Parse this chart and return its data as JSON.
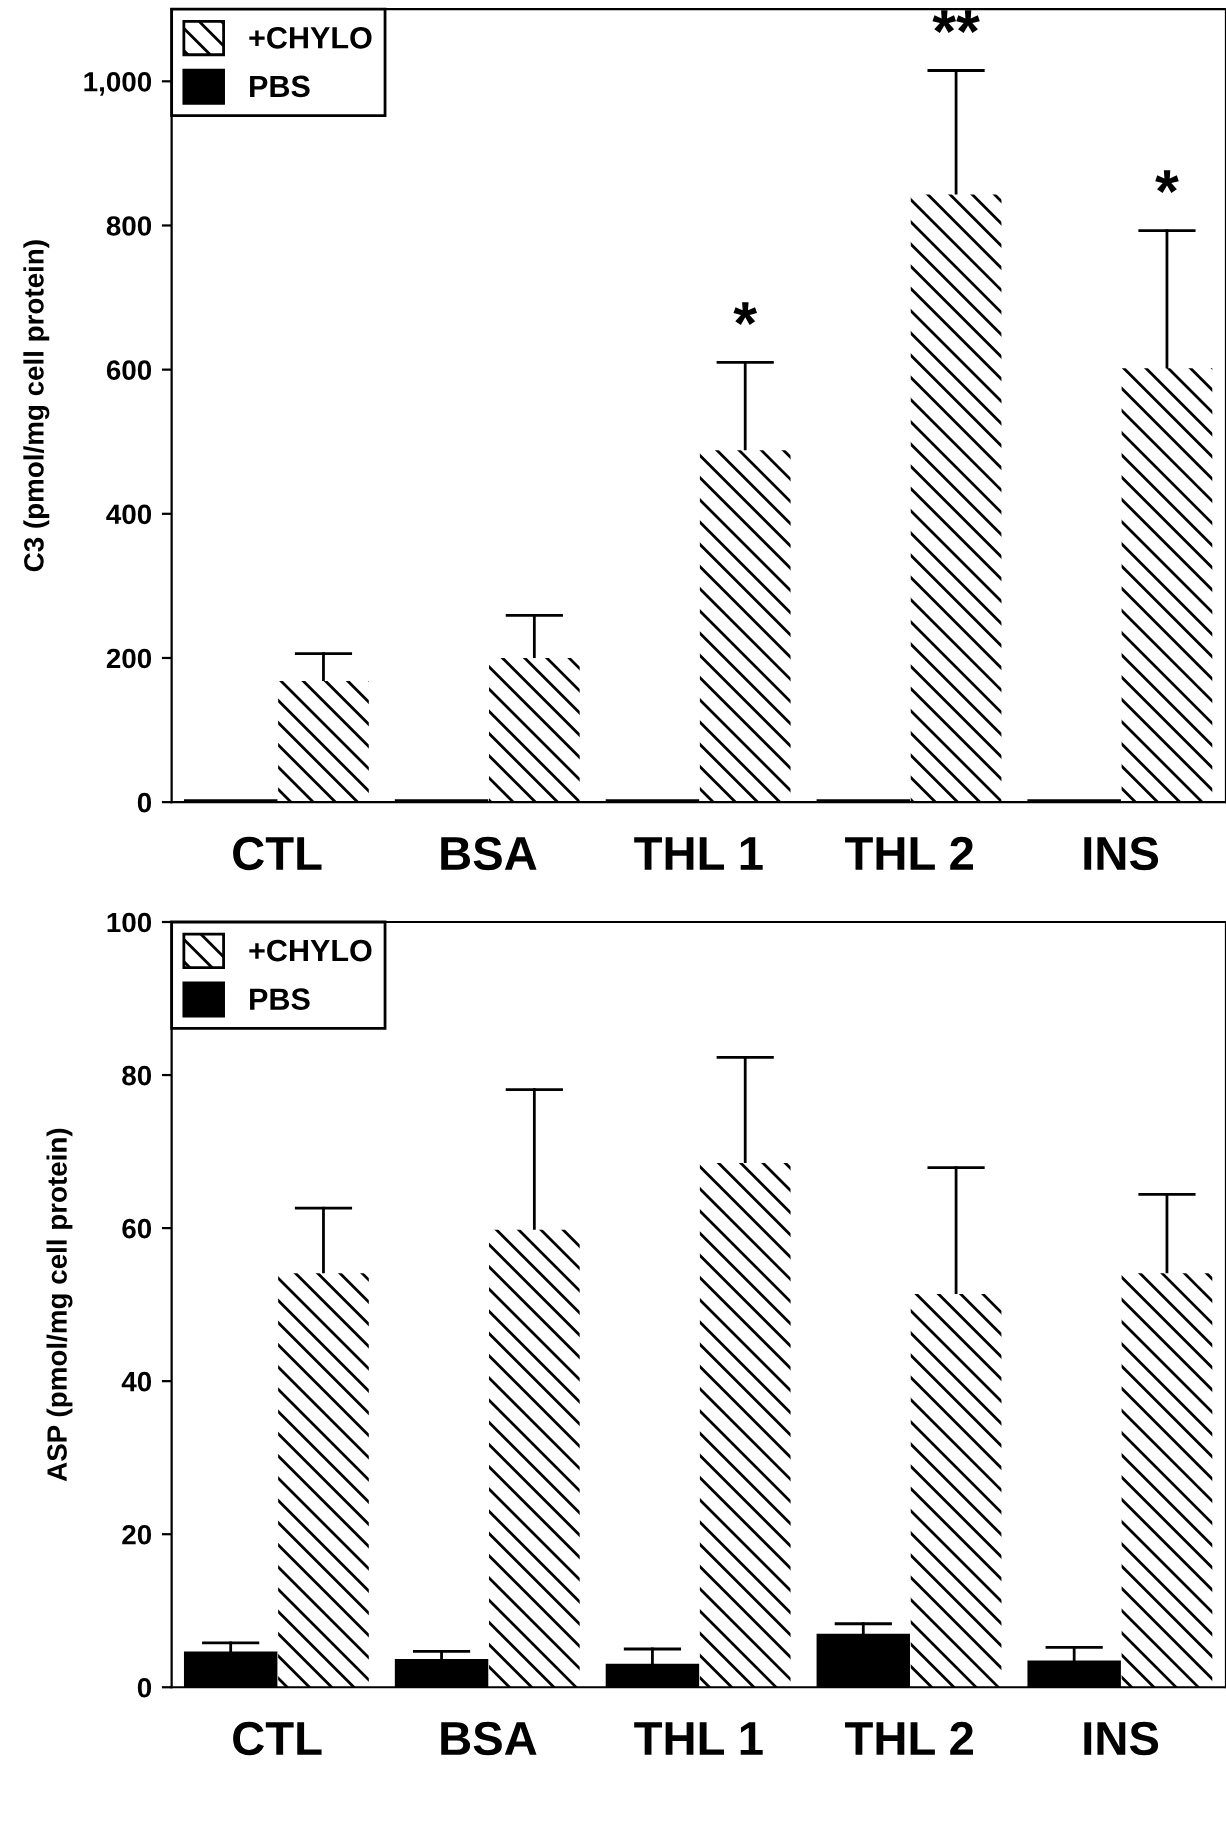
{
  "chart_data": [
    {
      "type": "bar",
      "ylabel": "C3 (pmol/mg cell protein)",
      "categories": [
        "CTL",
        "BSA",
        "THL 1",
        "THL 2",
        "INS"
      ],
      "series": [
        {
          "name": "+CHYLO",
          "color": "#ffffff",
          "values": [
            168,
            200,
            488,
            843,
            602
          ],
          "errors": [
            [
              168,
              206
            ],
            [
              200,
              259
            ],
            [
              488,
              610
            ],
            [
              843,
              1015
            ],
            [
              602,
              793
            ]
          ]
        },
        {
          "name": "PBS",
          "color": "#000000",
          "values": [
            2,
            2,
            2,
            2,
            2
          ]
        }
      ],
      "ylim": [
        0,
        1100
      ],
      "yticks": [
        0,
        200,
        400,
        600,
        800,
        {
          "value": 1000,
          "label": "1,000"
        }
      ],
      "legend": "top left",
      "grid": false,
      "annotations": [
        {
          "text": "*",
          "x": "THL 1",
          "y": 488
        },
        {
          "text": "**",
          "x": "THL 2",
          "y": 843
        },
        {
          "text": "*",
          "x": "INS",
          "y": 602
        }
      ]
    },
    {
      "type": "bar",
      "ylabel": "ASP (pmol/mg cell protein)",
      "categories": [
        "CTL",
        "BSA",
        "THL 1",
        "THL 2",
        "INS"
      ],
      "series": [
        {
          "name": "+CHYLO",
          "color": "#ffffff",
          "values": [
            54.1,
            59.8,
            68.5,
            51.4,
            54.1
          ],
          "errors": [
            [
              54.1,
              62.6
            ],
            [
              59.8,
              78.1
            ],
            [
              68.5,
              82.3
            ],
            [
              51.4,
              67.9
            ],
            [
              54.1,
              64.4
            ]
          ]
        },
        {
          "name": "PBS",
          "color": "#000000",
          "values": [
            4.5,
            3.5,
            2.9,
            6.8,
            3.3
          ],
          "errors": [
            [
              4.5,
              5.8
            ],
            [
              3.5,
              4.7
            ],
            [
              2.9,
              5.0
            ],
            [
              6.8,
              8.3
            ],
            [
              3.3,
              5.2
            ]
          ]
        }
      ],
      "ylim": [
        0,
        100
      ],
      "yticks": [
        0,
        20,
        40,
        60,
        80,
        100
      ],
      "legend": "top left",
      "grid": false
    }
  ]
}
